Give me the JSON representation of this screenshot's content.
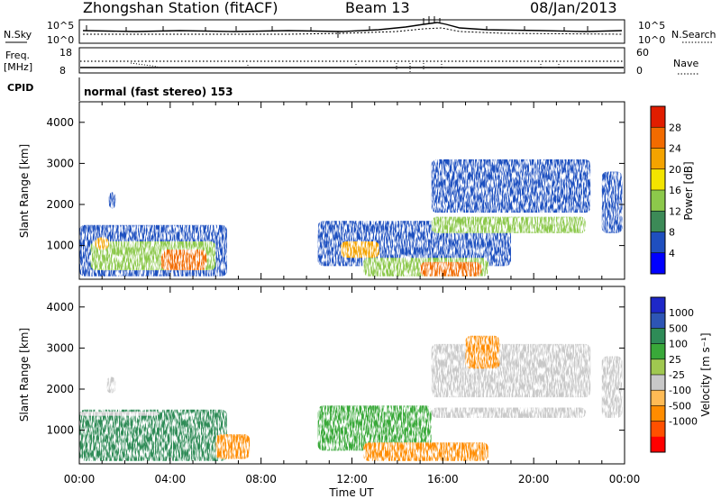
{
  "header": {
    "station": "Zhongshan Station (fitACF)",
    "beam": "Beam 13",
    "date": "08/Jan/2013"
  },
  "panels": {
    "nsky_label": "N.Sky",
    "nsearch_label": "N.Search",
    "freq_label_1": "Freq.",
    "freq_label_2": "[MHz]",
    "nave_label": "Nave",
    "cpid_label": "CPID",
    "cpid_value": "normal (fast stereo) 153",
    "noise_left_ticks": [
      "10^5",
      "10^0"
    ],
    "noise_right_ticks": [
      "10^5",
      "10^0"
    ],
    "freq_left_ticks": [
      "18",
      "8"
    ],
    "freq_right_ticks": [
      "60",
      "0"
    ]
  },
  "colors": {
    "power": [
      "#0000ff",
      "#1f4fbf",
      "#3c8a57",
      "#8cc84b",
      "#f3e400",
      "#f4a300",
      "#f26b00",
      "#e11d00"
    ],
    "velocity": [
      "#ff0000",
      "#ff5000",
      "#ff8c00",
      "#ffbb55",
      "#c8c8c8",
      "#a0c850",
      "#39a839",
      "#2e8b57",
      "#2d55b5",
      "#1e28c8"
    ],
    "ground_scatter": "#c8c8c8"
  },
  "chart_data": [
    {
      "type": "heatmap",
      "name": "power",
      "ylabel": "Slant Range [km]",
      "xlabel": "Time UT",
      "xlim": [
        0,
        24
      ],
      "ylim": [
        180,
        4500
      ],
      "x_tick_labels": [
        "00:00",
        "04:00",
        "08:00",
        "12:00",
        "16:00",
        "20:00",
        "00:00"
      ],
      "y_ticks": [
        1000,
        2000,
        3000,
        4000
      ],
      "colorbar": {
        "label": "Power [dB]",
        "range": [
          0,
          32
        ],
        "tick_values": [
          4,
          8,
          12,
          16,
          20,
          24,
          28
        ],
        "tick_labels": [
          "4",
          "8",
          "12",
          "16",
          "20",
          "24",
          "28"
        ]
      },
      "patches": [
        {
          "t0": 0.0,
          "t1": 6.5,
          "r0": 250,
          "r1": 1500,
          "dB": 6
        },
        {
          "t0": 0.5,
          "t1": 6.0,
          "r0": 400,
          "r1": 1100,
          "dB": 12
        },
        {
          "t0": 3.6,
          "t1": 5.6,
          "r0": 400,
          "r1": 900,
          "dB": 24
        },
        {
          "t0": 0.7,
          "t1": 1.3,
          "r0": 900,
          "r1": 1200,
          "dB": 20
        },
        {
          "t0": 1.3,
          "t1": 1.6,
          "r0": 1900,
          "r1": 2300,
          "dB": 6
        },
        {
          "t0": 10.5,
          "t1": 19.0,
          "r0": 500,
          "r1": 1600,
          "dB": 6
        },
        {
          "t0": 11.5,
          "t1": 13.2,
          "r0": 700,
          "r1": 1100,
          "dB": 22
        },
        {
          "t0": 12.5,
          "t1": 18.0,
          "r0": 250,
          "r1": 700,
          "dB": 14
        },
        {
          "t0": 15.0,
          "t1": 17.7,
          "r0": 250,
          "r1": 600,
          "dB": 26
        },
        {
          "t0": 15.5,
          "t1": 22.3,
          "r0": 1300,
          "r1": 1700,
          "dB": 14
        },
        {
          "t0": 15.5,
          "t1": 22.5,
          "r0": 1800,
          "r1": 3100,
          "dB": 5
        },
        {
          "t0": 23.0,
          "t1": 23.9,
          "r0": 1300,
          "r1": 2800,
          "dB": 5
        }
      ]
    },
    {
      "type": "heatmap",
      "name": "velocity",
      "ylabel": "Slant Range [km]",
      "xlabel": "Time UT",
      "xlim": [
        0,
        24
      ],
      "ylim": [
        180,
        4500
      ],
      "x_tick_labels": [
        "00:00",
        "04:00",
        "08:00",
        "12:00",
        "16:00",
        "20:00",
        "00:00"
      ],
      "y_ticks": [
        1000,
        2000,
        3000,
        4000
      ],
      "colorbar": {
        "label": "Velocity [m s⁻¹]",
        "tick_labels": [
          "1000",
          "500",
          "100",
          "25",
          "-25",
          "-100",
          "-500",
          "-1000"
        ]
      },
      "patches": [
        {
          "t0": 0.0,
          "t1": 6.5,
          "r0": 250,
          "r1": 1500,
          "color": 7
        },
        {
          "t0": 3.6,
          "t1": 5.6,
          "r0": 400,
          "r1": 1400,
          "color": 7
        },
        {
          "t0": 6.0,
          "t1": 7.5,
          "r0": 300,
          "r1": 900,
          "color": 2
        },
        {
          "t0": 0.0,
          "t1": 3.5,
          "r0": 1350,
          "r1": 1450,
          "color": 4
        },
        {
          "t0": 1.2,
          "t1": 1.6,
          "r0": 1900,
          "r1": 2300,
          "color": 4
        },
        {
          "t0": 10.5,
          "t1": 15.5,
          "r0": 500,
          "r1": 1600,
          "color": 6
        },
        {
          "t0": 12.5,
          "t1": 18.0,
          "r0": 250,
          "r1": 700,
          "color": 2
        },
        {
          "t0": 15.5,
          "t1": 22.3,
          "r0": 1300,
          "r1": 1550,
          "color": 4
        },
        {
          "t0": 15.5,
          "t1": 22.5,
          "r0": 1800,
          "r1": 3100,
          "color": 4
        },
        {
          "t0": 17.0,
          "t1": 18.5,
          "r0": 2500,
          "r1": 3300,
          "color": 2
        },
        {
          "t0": 23.0,
          "t1": 23.9,
          "r0": 1300,
          "r1": 2800,
          "color": 4
        }
      ]
    }
  ]
}
